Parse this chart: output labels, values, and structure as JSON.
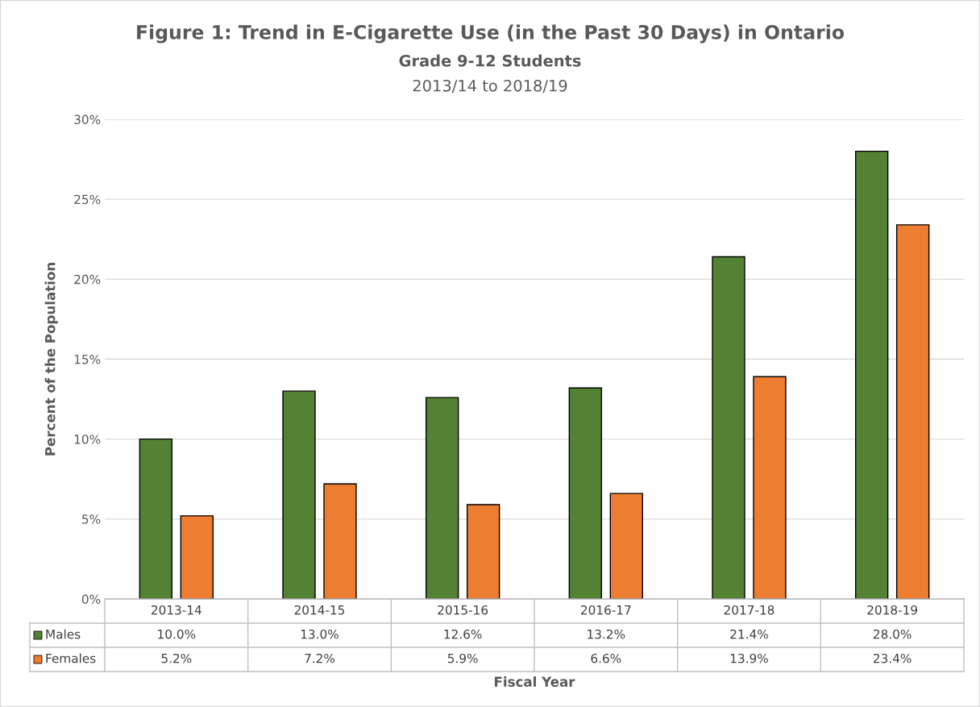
{
  "chart_data": {
    "type": "bar",
    "title": "Figure 1: Trend in E-Cigarette Use (in the Past 30 Days) in Ontario",
    "subtitle": "Grade 9-12 Students",
    "annotations": [
      "2013/14 to 2018/19"
    ],
    "xlabel": "Fiscal Year",
    "ylabel": "Percent of the Population",
    "categories": [
      "2013-14",
      "2014-15",
      "2015-16",
      "2016-17",
      "2017-18",
      "2018-19"
    ],
    "series": [
      {
        "name": "Males",
        "color": "#548235",
        "values": [
          10.0,
          13.0,
          12.6,
          13.2,
          21.4,
          28.0
        ],
        "value_labels": [
          "10.0%",
          "13.0%",
          "12.6%",
          "13.2%",
          "21.4%",
          "28.0%"
        ]
      },
      {
        "name": "Females",
        "color": "#ed7d31",
        "values": [
          5.2,
          7.2,
          5.9,
          6.6,
          13.9,
          23.4
        ],
        "value_labels": [
          "5.2%",
          "7.2%",
          "5.9%",
          "6.6%",
          "13.9%",
          "23.4%"
        ]
      }
    ],
    "ylim": [
      0,
      30
    ],
    "yticks": [
      {
        "value": 0,
        "label": "0%"
      },
      {
        "value": 5,
        "label": "5%"
      },
      {
        "value": 10,
        "label": "10%"
      },
      {
        "value": 15,
        "label": "15%"
      },
      {
        "value": 20,
        "label": "20%"
      },
      {
        "value": 25,
        "label": "25%"
      },
      {
        "value": 30,
        "label": "30%"
      }
    ],
    "grid": "y",
    "legend": "bottom"
  }
}
